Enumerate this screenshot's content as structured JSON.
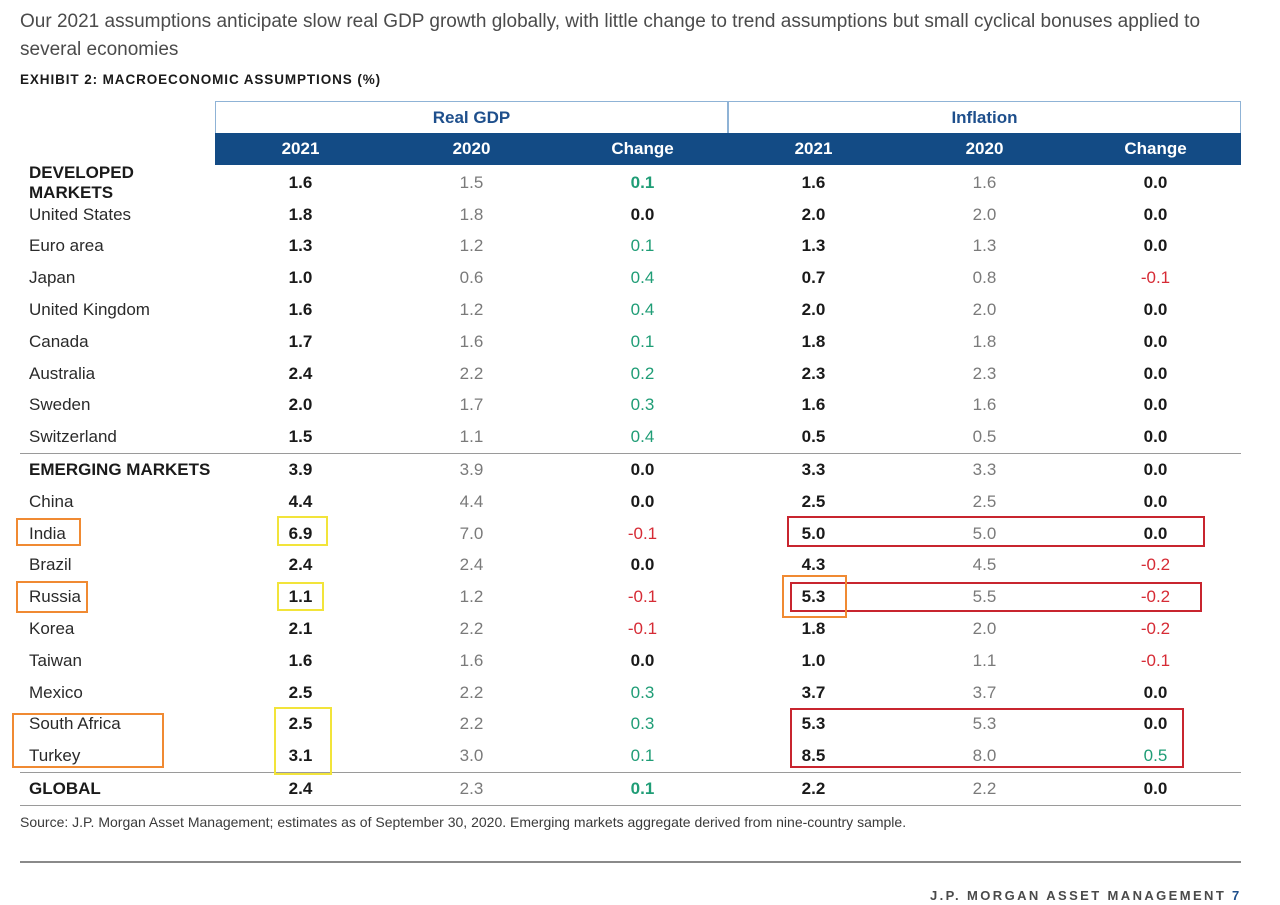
{
  "title": "Our 2021 assumptions anticipate slow real GDP growth globally, with little change to trend assumptions but small cyclical bonuses applied to several economies",
  "exhibit_label": "EXHIBIT 2: MACROECONOMIC ASSUMPTIONS (%)",
  "groups": {
    "gdp": "Real GDP",
    "inflation": "Inflation"
  },
  "columns": [
    "2021",
    "2020",
    "Change",
    "2021",
    "2020",
    "Change"
  ],
  "rows": [
    {
      "label": "DEVELOPED MARKETS",
      "gdp": [
        "1.6",
        "1.5",
        "0.1"
      ],
      "inf": [
        "1.6",
        "1.6",
        "0.0"
      ]
    },
    {
      "label": "United States",
      "gdp": [
        "1.8",
        "1.8",
        "0.0"
      ],
      "inf": [
        "2.0",
        "2.0",
        "0.0"
      ]
    },
    {
      "label": "Euro area",
      "gdp": [
        "1.3",
        "1.2",
        "0.1"
      ],
      "inf": [
        "1.3",
        "1.3",
        "0.0"
      ]
    },
    {
      "label": "Japan",
      "gdp": [
        "1.0",
        "0.6",
        "0.4"
      ],
      "inf": [
        "0.7",
        "0.8",
        "-0.1"
      ]
    },
    {
      "label": "United Kingdom",
      "gdp": [
        "1.6",
        "1.2",
        "0.4"
      ],
      "inf": [
        "2.0",
        "2.0",
        "0.0"
      ]
    },
    {
      "label": "Canada",
      "gdp": [
        "1.7",
        "1.6",
        "0.1"
      ],
      "inf": [
        "1.8",
        "1.8",
        "0.0"
      ]
    },
    {
      "label": "Australia",
      "gdp": [
        "2.4",
        "2.2",
        "0.2"
      ],
      "inf": [
        "2.3",
        "2.3",
        "0.0"
      ]
    },
    {
      "label": "Sweden",
      "gdp": [
        "2.0",
        "1.7",
        "0.3"
      ],
      "inf": [
        "1.6",
        "1.6",
        "0.0"
      ]
    },
    {
      "label": "Switzerland",
      "gdp": [
        "1.5",
        "1.1",
        "0.4"
      ],
      "inf": [
        "0.5",
        "0.5",
        "0.0"
      ]
    },
    {
      "label": "EMERGING MARKETS",
      "gdp": [
        "3.9",
        "3.9",
        "0.0"
      ],
      "inf": [
        "3.3",
        "3.3",
        "0.0"
      ]
    },
    {
      "label": "China",
      "gdp": [
        "4.4",
        "4.4",
        "0.0"
      ],
      "inf": [
        "2.5",
        "2.5",
        "0.0"
      ]
    },
    {
      "label": "India",
      "gdp": [
        "6.9",
        "7.0",
        "-0.1"
      ],
      "inf": [
        "5.0",
        "5.0",
        "0.0"
      ]
    },
    {
      "label": "Brazil",
      "gdp": [
        "2.4",
        "2.4",
        "0.0"
      ],
      "inf": [
        "4.3",
        "4.5",
        "-0.2"
      ]
    },
    {
      "label": "Russia",
      "gdp": [
        "1.1",
        "1.2",
        "-0.1"
      ],
      "inf": [
        "5.3",
        "5.5",
        "-0.2"
      ]
    },
    {
      "label": "Korea",
      "gdp": [
        "2.1",
        "2.2",
        "-0.1"
      ],
      "inf": [
        "1.8",
        "2.0",
        "-0.2"
      ]
    },
    {
      "label": "Taiwan",
      "gdp": [
        "1.6",
        "1.6",
        "0.0"
      ],
      "inf": [
        "1.0",
        "1.1",
        "-0.1"
      ]
    },
    {
      "label": "Mexico",
      "gdp": [
        "2.5",
        "2.2",
        "0.3"
      ],
      "inf": [
        "3.7",
        "3.7",
        "0.0"
      ]
    },
    {
      "label": "South Africa",
      "gdp": [
        "2.5",
        "2.2",
        "0.3"
      ],
      "inf": [
        "5.3",
        "5.3",
        "0.0"
      ]
    },
    {
      "label": "Turkey",
      "gdp": [
        "3.1",
        "3.0",
        "0.1"
      ],
      "inf": [
        "8.5",
        "8.0",
        "0.5"
      ]
    },
    {
      "label": "GLOBAL",
      "gdp": [
        "2.4",
        "2.3",
        "0.1"
      ],
      "inf": [
        "2.2",
        "2.2",
        "0.0"
      ]
    }
  ],
  "colors": {
    "header_bg": "#134b85",
    "group_text": "#1e4f8c",
    "positive": "#1f9d76",
    "negative": "#d62b35",
    "highlight_orange": "#f08a32",
    "highlight_yellow": "#f2e43a",
    "highlight_red": "#c8252f"
  },
  "source_note": "Source: J.P. Morgan Asset Management; estimates as of September 30, 2020. Emerging markets aggregate derived from nine-country sample.",
  "footer": {
    "brand": "J.P. MORGAN ASSET MANAGEMENT",
    "page_number": "7"
  }
}
